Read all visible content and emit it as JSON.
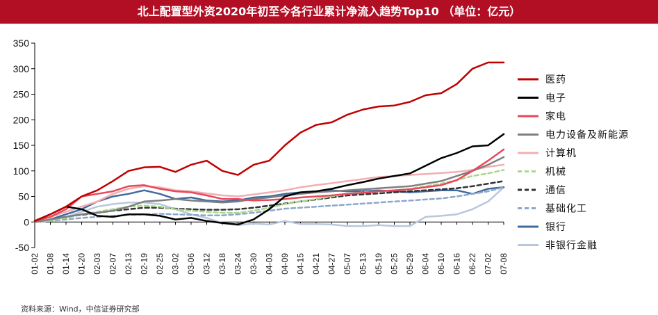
{
  "title": "北上配置型外资2020年初至今各行业累计净流入趋势Top10 （单位：亿元）",
  "source": "资料来源：Wind，中信证券研究部",
  "colors": {
    "title_bg": "#b20e24"
  },
  "chart_data": {
    "type": "line",
    "ylim": [
      -50,
      350
    ],
    "yticks": [
      -50,
      0,
      50,
      100,
      150,
      200,
      250,
      300,
      350
    ],
    "categories": [
      "01-02",
      "01-08",
      "01-14",
      "01-20",
      "02-03",
      "02-07",
      "02-13",
      "02-19",
      "02-25",
      "03-02",
      "03-06",
      "03-12",
      "03-18",
      "03-24",
      "03-30",
      "04-03",
      "04-09",
      "04-15",
      "04-21",
      "04-27",
      "05-07",
      "05-13",
      "05-19",
      "05-25",
      "05-29",
      "06-04",
      "06-10",
      "06-16",
      "06-22",
      "07-02",
      "07-08"
    ],
    "legend_position": "right",
    "grid": false,
    "series": [
      {
        "name": "医药",
        "color": "#c00000",
        "dash": "solid",
        "values": [
          2,
          15,
          30,
          50,
          62,
          80,
          100,
          107,
          108,
          98,
          112,
          120,
          100,
          92,
          112,
          120,
          150,
          175,
          190,
          195,
          210,
          220,
          226,
          228,
          235,
          248,
          252,
          270,
          300,
          312,
          312
        ]
      },
      {
        "name": "电子",
        "color": "#000000",
        "dash": "solid",
        "values": [
          2,
          15,
          30,
          25,
          12,
          10,
          15,
          15,
          12,
          5,
          8,
          2,
          -2,
          -5,
          5,
          25,
          50,
          58,
          60,
          65,
          72,
          78,
          85,
          90,
          95,
          110,
          125,
          135,
          148,
          150,
          172
        ]
      },
      {
        "name": "家电",
        "color": "#e8475c",
        "dash": "solid",
        "values": [
          2,
          10,
          25,
          50,
          55,
          60,
          70,
          72,
          65,
          60,
          58,
          52,
          45,
          45,
          42,
          43,
          45,
          48,
          50,
          52,
          55,
          57,
          60,
          62,
          64,
          68,
          72,
          82,
          100,
          120,
          142
        ]
      },
      {
        "name": "电力设备及新能源",
        "color": "#7f7f7f",
        "dash": "solid",
        "values": [
          0,
          5,
          10,
          15,
          18,
          22,
          30,
          40,
          42,
          45,
          42,
          40,
          38,
          40,
          45,
          48,
          52,
          55,
          58,
          60,
          62,
          64,
          66,
          68,
          70,
          75,
          80,
          90,
          100,
          112,
          127
        ]
      },
      {
        "name": "计算机",
        "color": "#f2aeb2",
        "dash": "solid",
        "values": [
          2,
          10,
          20,
          30,
          40,
          55,
          65,
          70,
          68,
          62,
          60,
          56,
          52,
          50,
          54,
          58,
          62,
          68,
          72,
          76,
          80,
          84,
          88,
          90,
          92,
          94,
          96,
          98,
          102,
          108,
          112
        ]
      },
      {
        "name": "机械",
        "color": "#a8d88a",
        "dash": "dashed",
        "values": [
          0,
          3,
          8,
          15,
          20,
          25,
          30,
          32,
          30,
          25,
          22,
          20,
          18,
          18,
          22,
          28,
          35,
          40,
          45,
          50,
          55,
          58,
          60,
          62,
          65,
          70,
          75,
          82,
          90,
          95,
          102
        ]
      },
      {
        "name": "通信",
        "color": "#333333",
        "dash": "dashed",
        "values": [
          0,
          5,
          10,
          14,
          18,
          22,
          25,
          28,
          28,
          26,
          25,
          24,
          24,
          25,
          28,
          32,
          36,
          40,
          44,
          48,
          52,
          54,
          56,
          58,
          60,
          62,
          64,
          66,
          70,
          75,
          80
        ]
      },
      {
        "name": "基础化工",
        "color": "#8ea6c8",
        "dash": "dashed",
        "values": [
          0,
          2,
          5,
          8,
          10,
          12,
          14,
          15,
          16,
          15,
          14,
          13,
          13,
          15,
          18,
          22,
          26,
          28,
          30,
          32,
          34,
          36,
          38,
          40,
          42,
          44,
          46,
          50,
          55,
          60,
          68
        ]
      },
      {
        "name": "银行",
        "color": "#3f6a9f",
        "dash": "solid",
        "values": [
          0,
          5,
          15,
          25,
          40,
          50,
          55,
          62,
          55,
          45,
          48,
          42,
          40,
          42,
          48,
          50,
          55,
          58,
          60,
          62,
          60,
          60,
          62,
          60,
          58,
          60,
          62,
          62,
          55,
          65,
          68
        ]
      },
      {
        "name": "非银行金融",
        "color": "#b8c7dc",
        "dash": "solid",
        "values": [
          0,
          5,
          10,
          20,
          30,
          35,
          38,
          38,
          35,
          25,
          15,
          8,
          -2,
          -6,
          -3,
          -5,
          2,
          -4,
          -4,
          -5,
          -8,
          -8,
          -6,
          -8,
          -8,
          10,
          12,
          15,
          25,
          40,
          68
        ]
      }
    ]
  }
}
